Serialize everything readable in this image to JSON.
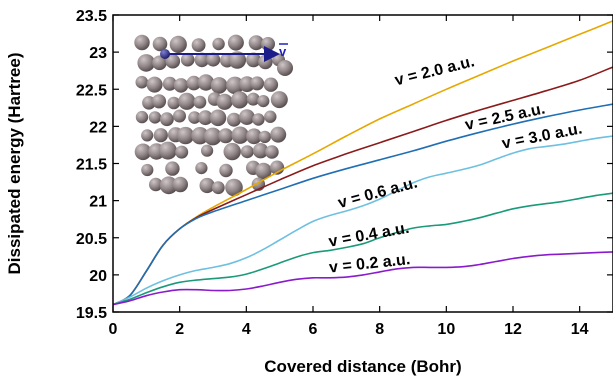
{
  "chart_data": {
    "type": "line",
    "xlabel": "Covered distance (Bohr)",
    "ylabel": "Dissipated energy (Hartree)",
    "xlim": [
      0,
      15
    ],
    "ylim": [
      19.5,
      23.5
    ],
    "xticks": [
      0,
      2,
      4,
      6,
      8,
      10,
      12,
      14
    ],
    "yticks": [
      19.5,
      20,
      20.5,
      21,
      21.5,
      22,
      22.5,
      23,
      23.5
    ],
    "grid": false,
    "legend": "labels placed next to curves",
    "inset": {
      "description": "atomic slab with projectile",
      "vector_label": "v",
      "projectile_color": "#2a2a8a",
      "atom_color": "#8f8486"
    },
    "series": [
      {
        "name": "v = 2.0 a.u.",
        "color": "#e6a800",
        "x": [
          0,
          0.5,
          1,
          1.5,
          2,
          2.5,
          3,
          4,
          5,
          6,
          7,
          8,
          9,
          10,
          11,
          12,
          13,
          14,
          15
        ],
        "y": [
          19.6,
          19.72,
          20.05,
          20.4,
          20.62,
          20.78,
          20.91,
          21.15,
          21.4,
          21.63,
          21.87,
          22.1,
          22.3,
          22.5,
          22.69,
          22.88,
          23.06,
          23.24,
          23.42
        ]
      },
      {
        "name": "v = 2.5 a.u.",
        "color": "#8b1a1a",
        "x": [
          0,
          0.5,
          1,
          1.5,
          2,
          2.5,
          3,
          4,
          5,
          6,
          7,
          8,
          9,
          10,
          11,
          12,
          13,
          14,
          15
        ],
        "y": [
          19.6,
          19.72,
          20.05,
          20.4,
          20.62,
          20.77,
          20.88,
          21.08,
          21.28,
          21.47,
          21.63,
          21.78,
          21.93,
          22.08,
          22.22,
          22.35,
          22.48,
          22.62,
          22.8
        ]
      },
      {
        "name": "v = 3.0 a.u.",
        "color": "#1f6fb4",
        "x": [
          0,
          0.5,
          1,
          1.5,
          2,
          2.5,
          3,
          4,
          5,
          6,
          7,
          8,
          9,
          10,
          11,
          12,
          13,
          14,
          15
        ],
        "y": [
          19.6,
          19.72,
          20.05,
          20.4,
          20.62,
          20.76,
          20.85,
          21.0,
          21.15,
          21.3,
          21.43,
          21.55,
          21.67,
          21.8,
          21.92,
          22.03,
          22.13,
          22.22,
          22.3
        ]
      },
      {
        "name": "v = 0.6 a.u.",
        "color": "#6ec0e0",
        "x": [
          0,
          0.5,
          1,
          1.5,
          2,
          2.5,
          3,
          3.5,
          4,
          4.5,
          5,
          5.5,
          6,
          6.5,
          7,
          7.5,
          8,
          8.5,
          9,
          9.5,
          10,
          10.5,
          11,
          11.5,
          12,
          12.5,
          13,
          13.5,
          14,
          14.5,
          15
        ],
        "y": [
          19.6,
          19.7,
          19.82,
          19.92,
          20.0,
          20.06,
          20.1,
          20.15,
          20.23,
          20.34,
          20.47,
          20.6,
          20.72,
          20.8,
          20.86,
          20.93,
          21.02,
          21.13,
          21.24,
          21.32,
          21.37,
          21.42,
          21.48,
          21.56,
          21.64,
          21.7,
          21.73,
          21.76,
          21.8,
          21.84,
          21.87
        ]
      },
      {
        "name": "v = 0.4 a.u.",
        "color": "#1a9a7a",
        "x": [
          0,
          0.5,
          1,
          1.5,
          2,
          2.5,
          3,
          3.5,
          4,
          4.5,
          5,
          5.5,
          6,
          6.5,
          7,
          7.5,
          8,
          8.5,
          9,
          9.5,
          10,
          10.5,
          11,
          11.5,
          12,
          12.5,
          13,
          13.5,
          14,
          14.5,
          15
        ],
        "y": [
          19.6,
          19.67,
          19.76,
          19.84,
          19.9,
          19.93,
          19.95,
          19.97,
          20.01,
          20.08,
          20.16,
          20.24,
          20.3,
          20.33,
          20.37,
          20.42,
          20.5,
          20.57,
          20.63,
          20.66,
          20.68,
          20.72,
          20.77,
          20.83,
          20.89,
          20.93,
          20.96,
          20.99,
          21.03,
          21.07,
          21.1
        ]
      },
      {
        "name": "v = 0.2 a.u.",
        "color": "#8a1bcc",
        "x": [
          0,
          0.5,
          1,
          1.5,
          2,
          2.5,
          3,
          3.5,
          4,
          4.5,
          5,
          5.5,
          6,
          6.5,
          7,
          7.5,
          8,
          8.5,
          9,
          9.5,
          10,
          10.5,
          11,
          11.5,
          12,
          12.5,
          13,
          13.5,
          14,
          14.5,
          15
        ],
        "y": [
          19.6,
          19.65,
          19.72,
          19.77,
          19.8,
          19.8,
          19.79,
          19.79,
          19.81,
          19.85,
          19.9,
          19.94,
          19.96,
          19.96,
          19.97,
          20.0,
          20.04,
          20.08,
          20.1,
          20.1,
          20.1,
          20.11,
          20.14,
          20.18,
          20.22,
          20.25,
          20.27,
          20.28,
          20.29,
          20.3,
          20.31
        ]
      }
    ]
  }
}
